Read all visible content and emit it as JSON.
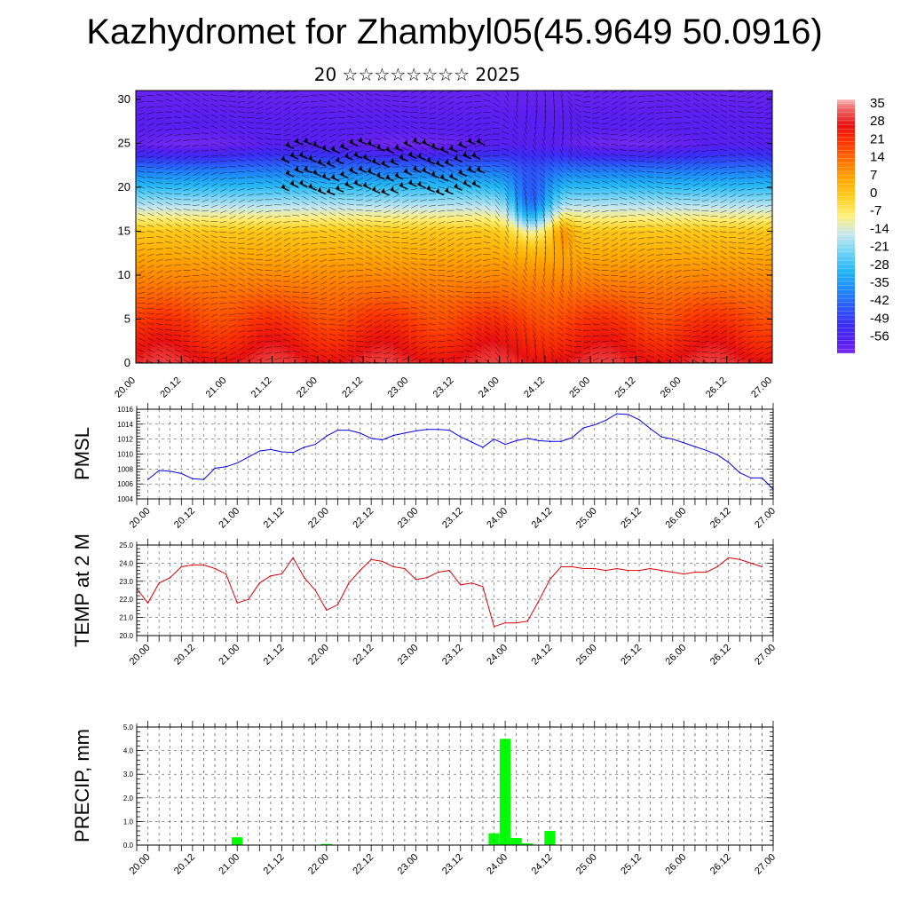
{
  "header": {
    "title": "Kazhydromet for Zhambyl05(45.9649 50.0916)",
    "subtitle": "20 ☆☆☆☆☆☆☆☆ 2025"
  },
  "time_labels": [
    "20.00",
    "20.12",
    "21.00",
    "21.12",
    "22.00",
    "22.12",
    "23.00",
    "23.12",
    "24.00",
    "24.12",
    "25.00",
    "25.12",
    "26.00",
    "26.12",
    "27.00"
  ],
  "chart_data": [
    {
      "type": "heatmap",
      "name": "cross-section",
      "y_ticks": [
        0,
        5,
        10,
        15,
        20,
        25,
        30
      ],
      "ylim": [
        0,
        31
      ],
      "xlim": [
        0,
        14
      ],
      "colorbar_labels": [
        "35",
        "28",
        "21",
        "14",
        "7",
        "0",
        "-7",
        "-14",
        "-21",
        "-28",
        "-35",
        "-42",
        "-49",
        "-56"
      ],
      "colorbar_range": [
        -60,
        38
      ],
      "color_stops": [
        {
          "v": -60,
          "c": "#7a2cf0"
        },
        {
          "v": -56,
          "c": "#5a1ef0"
        },
        {
          "v": -49,
          "c": "#3a2cf5"
        },
        {
          "v": -42,
          "c": "#2a5af8"
        },
        {
          "v": -35,
          "c": "#1e8cf8"
        },
        {
          "v": -28,
          "c": "#22b8f5"
        },
        {
          "v": -21,
          "c": "#70d2f5"
        },
        {
          "v": -14,
          "c": "#c8e8f0"
        },
        {
          "v": -7,
          "c": "#fff07a"
        },
        {
          "v": 0,
          "c": "#ffd020"
        },
        {
          "v": 7,
          "c": "#ffa800"
        },
        {
          "v": 14,
          "c": "#ff7400"
        },
        {
          "v": 21,
          "c": "#ff3800"
        },
        {
          "v": 28,
          "c": "#e81010"
        },
        {
          "v": 35,
          "c": "#f07070"
        },
        {
          "v": 38,
          "c": "#f8c0c0"
        }
      ]
    },
    {
      "type": "line",
      "name": "pmsl",
      "ylabel": "PMSL",
      "y_ticks": [
        "1004",
        "1006",
        "1008",
        "1010",
        "1012",
        "1014",
        "1016"
      ],
      "ylim": [
        1004,
        1016
      ],
      "xlim": [
        -0.25,
        14
      ],
      "color": "#0000ee",
      "x": [
        0,
        0.25,
        0.5,
        0.75,
        1,
        1.25,
        1.5,
        1.75,
        2,
        2.25,
        2.5,
        2.75,
        3,
        3.25,
        3.5,
        3.75,
        4,
        4.25,
        4.5,
        4.75,
        5,
        5.25,
        5.5,
        5.75,
        6,
        6.25,
        6.5,
        6.75,
        7,
        7.25,
        7.5,
        7.75,
        8,
        8.25,
        8.5,
        8.75,
        9,
        9.25,
        9.5,
        9.75,
        10,
        10.25,
        10.5,
        10.75,
        11,
        11.25,
        11.5,
        11.75,
        12,
        12.25,
        12.5,
        12.75,
        13,
        13.25,
        13.5,
        13.75
      ],
      "values": [
        1006.6,
        1007.8,
        1007.7,
        1007.4,
        1006.7,
        1006.6,
        1008.1,
        1008.3,
        1008.8,
        1009.6,
        1010.4,
        1010.6,
        1010.3,
        1010.2,
        1010.9,
        1011.3,
        1012.4,
        1013.2,
        1013.2,
        1012.8,
        1012.1,
        1011.9,
        1012.5,
        1012.8,
        1013.1,
        1013.3,
        1013.3,
        1013.2,
        1012.3,
        1011.6,
        1010.9,
        1012.0,
        1011.3,
        1011.8,
        1012.1,
        1011.8,
        1011.7,
        1011.7,
        1012.2,
        1013.5,
        1013.9,
        1014.5,
        1015.4,
        1015.3,
        1014.6,
        1013.4,
        1012.3,
        1012.0,
        1011.5,
        1011.0,
        1010.5,
        1009.9,
        1008.9,
        1007.5,
        1006.8,
        1006.8
      ],
      "extra": {
        "x": [
          14
        ],
        "values": [
          1005.3
        ],
        "prefix": [
          1006.7
        ]
      }
    },
    {
      "type": "line",
      "name": "temp",
      "ylabel": "TEMP at 2 M",
      "y_ticks": [
        "20.0",
        "21.0",
        "22.0",
        "23.0",
        "24.0",
        "25.0"
      ],
      "ylim": [
        20,
        25
      ],
      "xlim": [
        -0.25,
        14
      ],
      "color": "#dd0000",
      "x": [
        0,
        0.25,
        0.5,
        0.75,
        1,
        1.25,
        1.5,
        1.75,
        2,
        2.25,
        2.5,
        2.75,
        3,
        3.25,
        3.5,
        3.75,
        4,
        4.25,
        4.5,
        4.75,
        5,
        5.25,
        5.5,
        5.75,
        6,
        6.25,
        6.5,
        6.75,
        7,
        7.25,
        7.5,
        7.75,
        8,
        8.25,
        8.5,
        8.75,
        9,
        9.25,
        9.5,
        9.75,
        10,
        10.25,
        10.5,
        10.75,
        11,
        11.25,
        11.5,
        11.75,
        12,
        12.25,
        12.5,
        12.75,
        13,
        13.25,
        13.5,
        13.75
      ],
      "values": [
        21.8,
        22.9,
        23.2,
        23.8,
        23.9,
        23.9,
        23.7,
        23.4,
        21.8,
        22.0,
        22.9,
        23.3,
        23.4,
        24.3,
        23.2,
        22.5,
        21.4,
        21.7,
        22.9,
        23.6,
        24.2,
        24.1,
        23.8,
        23.7,
        23.1,
        23.2,
        23.5,
        23.6,
        22.8,
        22.9,
        22.7,
        20.5,
        20.7,
        20.7,
        20.8,
        21.9,
        23.1,
        23.8,
        23.8,
        23.7,
        23.7,
        23.6,
        23.7,
        23.6,
        23.6,
        23.7,
        23.6,
        23.5,
        23.4,
        23.5,
        23.5,
        23.8,
        24.3,
        24.2,
        24.0,
        23.8
      ],
      "prefix": [
        22.6
      ]
    },
    {
      "type": "bar",
      "name": "precip",
      "ylabel": "PRECIP, mm",
      "y_ticks": [
        "0.0",
        "1.0",
        "2.0",
        "3.0",
        "4.0",
        "5.0"
      ],
      "ylim": [
        0,
        5
      ],
      "xlim": [
        -0.25,
        14
      ],
      "color": "#00ff00",
      "x": [
        2,
        4,
        7.75,
        8,
        8.25,
        8.5,
        9
      ],
      "values": [
        0.33,
        0.05,
        0.5,
        4.5,
        0.3,
        0.07,
        0.6
      ]
    }
  ]
}
